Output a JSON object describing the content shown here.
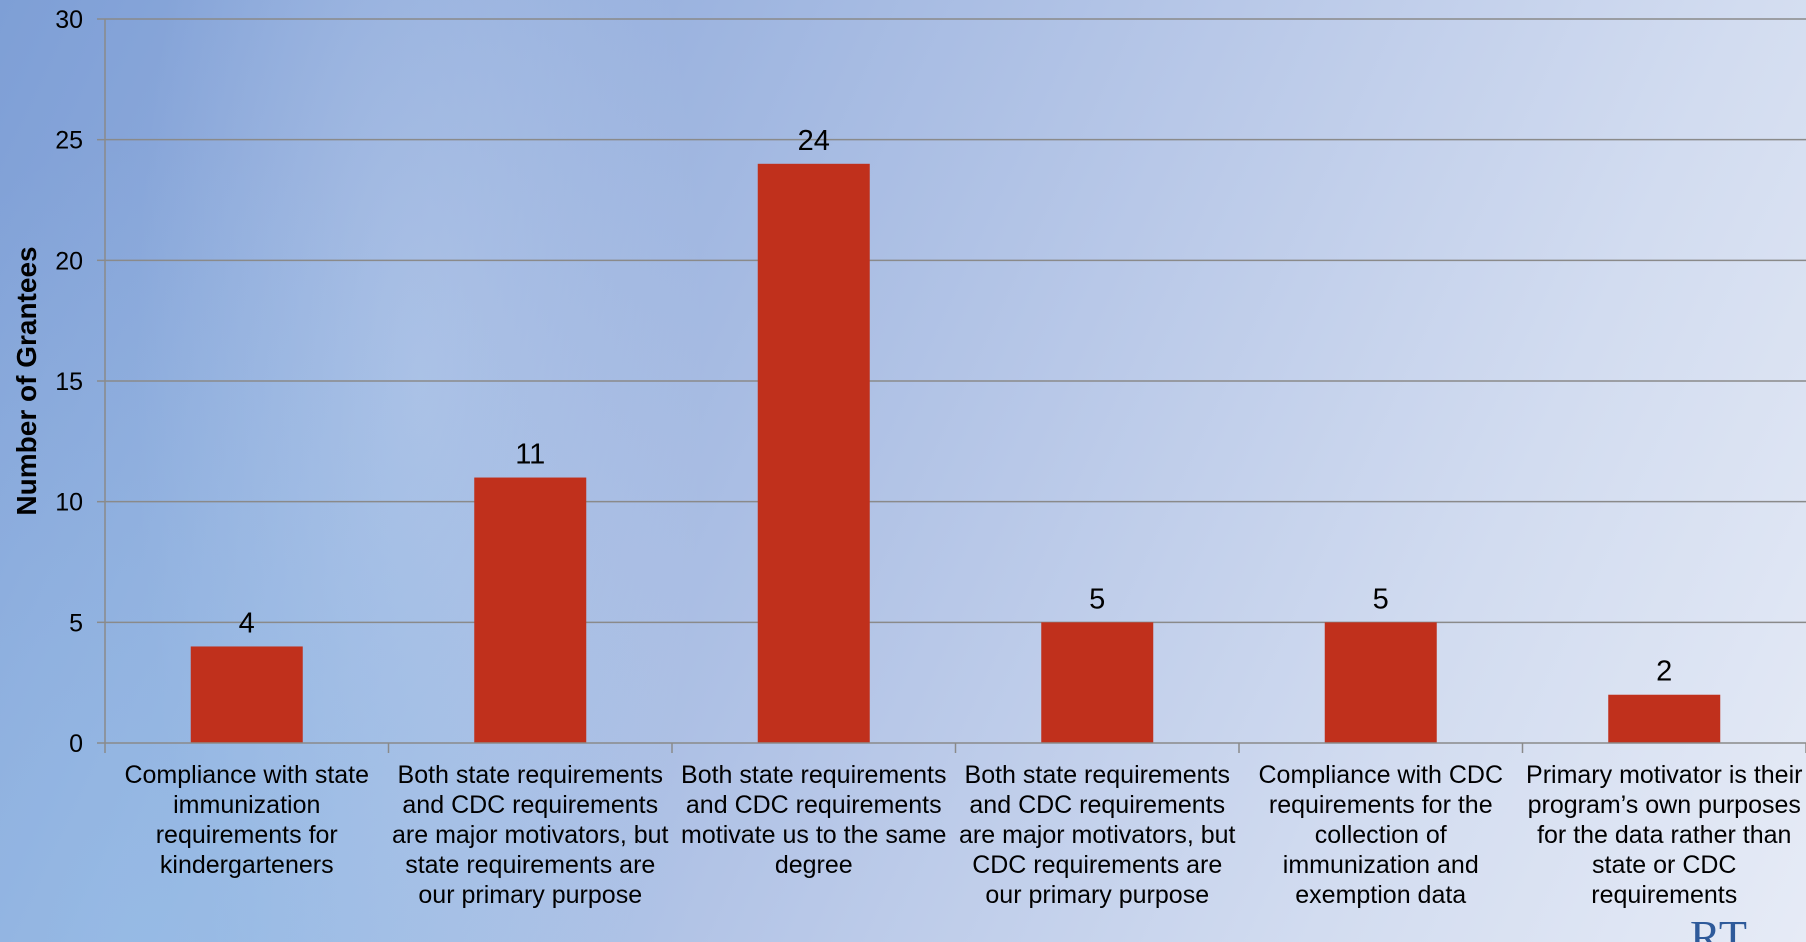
{
  "chart_data": {
    "type": "bar",
    "categories": [
      "Compliance with state immunization requirements for kindergarteners",
      "Both state requirements and CDC requirements are major motivators, but state requirements are our primary purpose",
      "Both state requirements and CDC requirements motivate us to the same degree",
      "Both state requirements and CDC requirements are major motivators, but CDC requirements are our primary purpose",
      "Compliance with CDC requirements for the collection of immunization and exemption data",
      "Primary motivator is their program’s own purposes for the data rather than state or CDC requirements"
    ],
    "values": [
      4,
      11,
      24,
      5,
      5,
      2
    ],
    "data_labels": [
      "4",
      "11",
      "24",
      "5",
      "5",
      "2"
    ],
    "ylabel": "Number of Grantees",
    "ylim": [
      0,
      30
    ],
    "yticks": [
      0,
      5,
      10,
      15,
      20,
      25,
      30
    ],
    "grid": true,
    "bar_color": "#C0301C"
  },
  "logo": {
    "text": "RT"
  }
}
